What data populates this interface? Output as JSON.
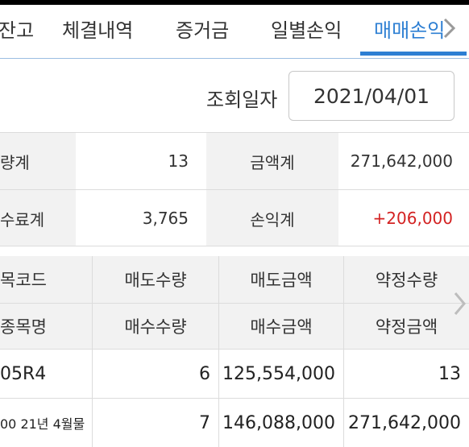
{
  "tabs": [
    {
      "label": "잔고"
    },
    {
      "label": "체결내역"
    },
    {
      "label": "증거금"
    },
    {
      "label": "일별손익"
    },
    {
      "label": "매매손익"
    }
  ],
  "active_tab": "매매손익",
  "date_label": "조회일자",
  "date_value": "2021/04/01",
  "summary": {
    "qty_label": "량계",
    "qty_value": "13",
    "amount_label": "금액계",
    "amount_value": "271,642,000",
    "fee_label": "수료계",
    "fee_value": "3,765",
    "pnl_label": "손익계",
    "pnl_value": "+206,000"
  },
  "grid": {
    "headers_row1": [
      "목코드",
      "매도수량",
      "매도금액",
      "약정수량"
    ],
    "headers_row2": [
      "종목명",
      "매수수량",
      "매수금액",
      "약정금액"
    ],
    "row1": [
      "05R4",
      "6",
      "125,554,000",
      "13"
    ],
    "row2": [
      "00 21년 4월물",
      "7",
      "146,088,000",
      "271,642,000"
    ]
  },
  "colors": {
    "accent": "#2d7fd3",
    "profit": "#d32222"
  },
  "icons": {
    "tab_scroll": "chevron-right-icon",
    "grid_scroll": "chevron-right-icon"
  }
}
